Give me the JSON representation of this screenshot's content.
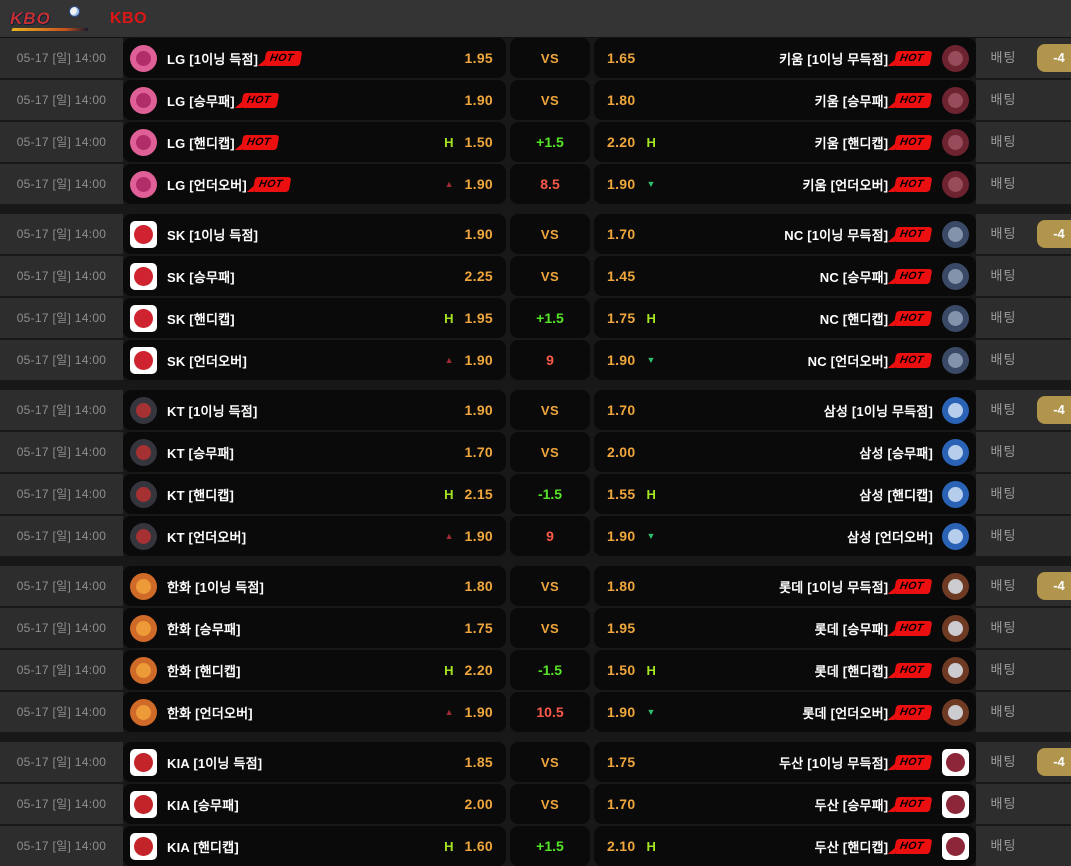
{
  "header": {
    "title": "KBO",
    "logo_text": "KBO"
  },
  "labels": {
    "bet": "배팅",
    "hot": "HOT",
    "h": "H",
    "up": "▲",
    "down": "▼"
  },
  "colors": {
    "title": "#e01515",
    "odds": "#efa73d",
    "vs": "#efa73d",
    "handicap_line": "#55e427",
    "h_flag": "#a4e622",
    "total_line": "#fb5a4a",
    "up_triangle": "#9e2c38",
    "down_triangle": "#2dbf6e",
    "hot_bg": "#ec0f0f",
    "count_badge_bg": "#b2954c",
    "card_bg": "#0a0a0a",
    "row_bg": "#2d2d2d",
    "header_bg": "#343434"
  },
  "teams": {
    "lg": {
      "logo_name": "lg-twins-logo",
      "shape": "circle",
      "bg": "#df5f97",
      "core": "#a92560"
    },
    "kiwoom": {
      "logo_name": "kiwoom-heroes-logo",
      "shape": "circle",
      "bg": "#6e2330",
      "core": "#a05262"
    },
    "sk": {
      "logo_name": "sk-wyverns-logo",
      "shape": "square",
      "bg": "#ffffff",
      "core": "#cf2430"
    },
    "nc": {
      "logo_name": "nc-dinos-logo",
      "shape": "circle",
      "bg": "#3a4a66",
      "core": "#92a0b8"
    },
    "kt": {
      "logo_name": "kt-wiz-logo",
      "shape": "circle",
      "bg": "#35353d",
      "core": "#b93030"
    },
    "samsung": {
      "logo_name": "samsung-lions-logo",
      "shape": "circle",
      "bg": "#2a62b5",
      "core": "#cfe0f5"
    },
    "hanwha": {
      "logo_name": "hanwha-eagles-logo",
      "shape": "circle",
      "bg": "#cf6a28",
      "core": "#f2a23c"
    },
    "lotte": {
      "logo_name": "lotte-giants-logo",
      "shape": "circle",
      "bg": "#6f3a24",
      "core": "#dde6ee"
    },
    "kia": {
      "logo_name": "kia-tigers-logo",
      "shape": "square",
      "bg": "#ffffff",
      "core": "#c3242a"
    },
    "doosan": {
      "logo_name": "doosan-bears-logo",
      "shape": "square",
      "bg": "#ffffff",
      "core": "#8c2638"
    }
  },
  "groups": [
    {
      "time": "05-17 [일] 14:00",
      "home_team": "lg",
      "away_team": "kiwoom",
      "rows": [
        {
          "left": {
            "label": "LG [1이닝 득점]",
            "hot": true,
            "odds": "1.95"
          },
          "center": {
            "text": "VS",
            "type": "vs"
          },
          "right": {
            "odds": "1.65",
            "hot": true,
            "label": "키움 [1이닝 무득점]"
          },
          "badge": "-4"
        },
        {
          "left": {
            "label": "LG [승무패]",
            "hot": true,
            "odds": "1.90"
          },
          "center": {
            "text": "VS",
            "type": "vs"
          },
          "right": {
            "odds": "1.80",
            "hot": true,
            "label": "키움 [승무패]"
          }
        },
        {
          "left": {
            "label": "LG [핸디캡]",
            "hot": true,
            "ind": "h",
            "odds": "1.50"
          },
          "center": {
            "text": "+1.5",
            "type": "line"
          },
          "right": {
            "odds": "2.20",
            "ind": "h",
            "hot": true,
            "label": "키움 [핸디캡]"
          }
        },
        {
          "left": {
            "label": "LG [언더오버]",
            "hot": true,
            "ind": "up",
            "odds": "1.90"
          },
          "center": {
            "text": "8.5",
            "type": "total"
          },
          "right": {
            "odds": "1.90",
            "ind": "down",
            "hot": true,
            "label": "키움 [언더오버]"
          }
        }
      ]
    },
    {
      "time": "05-17 [일] 14:00",
      "home_team": "sk",
      "away_team": "nc",
      "rows": [
        {
          "left": {
            "label": "SK [1이닝 득점]",
            "odds": "1.90"
          },
          "center": {
            "text": "VS",
            "type": "vs"
          },
          "right": {
            "odds": "1.70",
            "hot": true,
            "label": "NC [1이닝 무득점]"
          },
          "badge": "-4"
        },
        {
          "left": {
            "label": "SK [승무패]",
            "odds": "2.25"
          },
          "center": {
            "text": "VS",
            "type": "vs"
          },
          "right": {
            "odds": "1.45",
            "hot": true,
            "label": "NC [승무패]"
          }
        },
        {
          "left": {
            "label": "SK [핸디캡]",
            "ind": "h",
            "odds": "1.95"
          },
          "center": {
            "text": "+1.5",
            "type": "line"
          },
          "right": {
            "odds": "1.75",
            "ind": "h",
            "hot": true,
            "label": "NC [핸디캡]"
          }
        },
        {
          "left": {
            "label": "SK [언더오버]",
            "ind": "up",
            "odds": "1.90"
          },
          "center": {
            "text": "9",
            "type": "total"
          },
          "right": {
            "odds": "1.90",
            "ind": "down",
            "hot": true,
            "label": "NC [언더오버]"
          }
        }
      ]
    },
    {
      "time": "05-17 [일] 14:00",
      "home_team": "kt",
      "away_team": "samsung",
      "rows": [
        {
          "left": {
            "label": "KT [1이닝 득점]",
            "odds": "1.90"
          },
          "center": {
            "text": "VS",
            "type": "vs"
          },
          "right": {
            "odds": "1.70",
            "label": "삼성 [1이닝 무득점]"
          },
          "badge": "-4"
        },
        {
          "left": {
            "label": "KT [승무패]",
            "odds": "1.70"
          },
          "center": {
            "text": "VS",
            "type": "vs"
          },
          "right": {
            "odds": "2.00",
            "label": "삼성 [승무패]"
          }
        },
        {
          "left": {
            "label": "KT [핸디캡]",
            "ind": "h",
            "odds": "2.15"
          },
          "center": {
            "text": "-1.5",
            "type": "line"
          },
          "right": {
            "odds": "1.55",
            "ind": "h",
            "label": "삼성 [핸디캡]"
          }
        },
        {
          "left": {
            "label": "KT [언더오버]",
            "ind": "up",
            "odds": "1.90"
          },
          "center": {
            "text": "9",
            "type": "total"
          },
          "right": {
            "odds": "1.90",
            "ind": "down",
            "label": "삼성 [언더오버]"
          }
        }
      ]
    },
    {
      "time": "05-17 [일] 14:00",
      "home_team": "hanwha",
      "away_team": "lotte",
      "rows": [
        {
          "left": {
            "label": "한화 [1이닝 득점]",
            "odds": "1.80"
          },
          "center": {
            "text": "VS",
            "type": "vs"
          },
          "right": {
            "odds": "1.80",
            "hot": true,
            "label": "롯데 [1이닝 무득점]"
          },
          "badge": "-4"
        },
        {
          "left": {
            "label": "한화 [승무패]",
            "odds": "1.75"
          },
          "center": {
            "text": "VS",
            "type": "vs"
          },
          "right": {
            "odds": "1.95",
            "hot": true,
            "label": "롯데 [승무패]"
          }
        },
        {
          "left": {
            "label": "한화 [핸디캡]",
            "ind": "h",
            "odds": "2.20"
          },
          "center": {
            "text": "-1.5",
            "type": "line"
          },
          "right": {
            "odds": "1.50",
            "ind": "h",
            "hot": true,
            "label": "롯데 [핸디캡]"
          }
        },
        {
          "left": {
            "label": "한화 [언더오버]",
            "ind": "up",
            "odds": "1.90"
          },
          "center": {
            "text": "10.5",
            "type": "total"
          },
          "right": {
            "odds": "1.90",
            "ind": "down",
            "hot": true,
            "label": "롯데 [언더오버]"
          }
        }
      ]
    },
    {
      "time": "05-17 [일] 14:00",
      "home_team": "kia",
      "away_team": "doosan",
      "rows": [
        {
          "left": {
            "label": "KIA [1이닝 득점]",
            "odds": "1.85"
          },
          "center": {
            "text": "VS",
            "type": "vs"
          },
          "right": {
            "odds": "1.75",
            "hot": true,
            "label": "두산 [1이닝 무득점]"
          },
          "badge": "-4"
        },
        {
          "left": {
            "label": "KIA [승무패]",
            "odds": "2.00"
          },
          "center": {
            "text": "VS",
            "type": "vs"
          },
          "right": {
            "odds": "1.70",
            "hot": true,
            "label": "두산 [승무패]"
          }
        },
        {
          "left": {
            "label": "KIA [핸디캡]",
            "ind": "h",
            "odds": "1.60"
          },
          "center": {
            "text": "+1.5",
            "type": "line"
          },
          "right": {
            "odds": "2.10",
            "ind": "h",
            "hot": true,
            "label": "두산 [핸디캡]"
          }
        }
      ]
    }
  ]
}
